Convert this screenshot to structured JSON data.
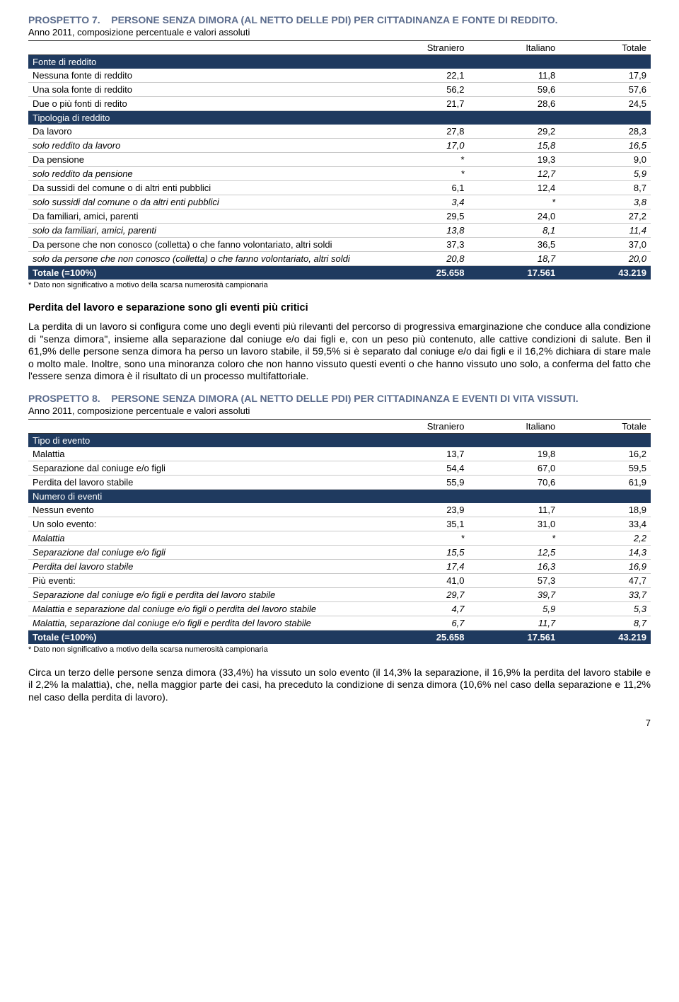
{
  "prospetto7": {
    "title_prefix": "PROSPETTO 7.",
    "title_text": "PERSONE SENZA DIMORA (AL NETTO DELLE PDI) PER CITTADINANZA E FONTE DI REDDITO.",
    "subtitle": "Anno 2011, composizione percentuale e valori assoluti",
    "columns": [
      "Straniero",
      "Italiano",
      "Totale"
    ],
    "sections": [
      {
        "header": "Fonte di reddito",
        "rows": [
          {
            "label": "Nessuna fonte di reddito",
            "vals": [
              "22,1",
              "11,8",
              "17,9"
            ]
          },
          {
            "label": "Una sola fonte di reddito",
            "vals": [
              "56,2",
              "59,6",
              "57,6"
            ]
          },
          {
            "label": "Due o più fonti di redito",
            "vals": [
              "21,7",
              "28,6",
              "24,5"
            ]
          }
        ]
      },
      {
        "header": "Tipologia di reddito",
        "rows": [
          {
            "label": "Da lavoro",
            "vals": [
              "27,8",
              "29,2",
              "28,3"
            ]
          },
          {
            "label": "solo reddito da lavoro",
            "vals": [
              "17,0",
              "15,8",
              "16,5"
            ],
            "italic": true
          },
          {
            "label": "Da pensione",
            "vals": [
              "*",
              "19,3",
              "9,0"
            ]
          },
          {
            "label": "solo reddito da pensione",
            "vals": [
              "*",
              "12,7",
              "5,9"
            ],
            "italic": true
          },
          {
            "label": "Da sussidi del comune o di altri enti pubblici",
            "vals": [
              "6,1",
              "12,4",
              "8,7"
            ]
          },
          {
            "label": "solo sussidi dal comune o da altri enti pubblici",
            "vals": [
              "3,4",
              "*",
              "3,8"
            ],
            "italic": true
          },
          {
            "label": "Da familiari, amici, parenti",
            "vals": [
              "29,5",
              "24,0",
              "27,2"
            ]
          },
          {
            "label": "solo da familiari, amici, parenti",
            "vals": [
              "13,8",
              "8,1",
              "11,4"
            ],
            "italic": true
          },
          {
            "label": "Da persone che non conosco (colletta) o che fanno volontariato, altri soldi",
            "vals": [
              "37,3",
              "36,5",
              "37,0"
            ]
          },
          {
            "label": "solo da persone che non conosco (colletta) o che fanno volontariato, altri soldi",
            "vals": [
              "20,8",
              "18,7",
              "20,0"
            ],
            "italic": true
          }
        ]
      }
    ],
    "total": {
      "label": "Totale (=100%)",
      "vals": [
        "25.658",
        "17.561",
        "43.219"
      ]
    },
    "footnote": "* Dato non significativo a motivo della scarsa numerosità campionaria"
  },
  "heading1": "Perdita del lavoro e separazione sono gli eventi più critici",
  "para1": "La perdita di un lavoro si configura come uno degli eventi più rilevanti del percorso di progressiva emarginazione che conduce alla condizione di \"senza dimora\", insieme alla separazione dal coniuge e/o dai figli e, con un peso più contenuto, alle cattive condizioni di salute. Ben il 61,9% delle persone senza dimora ha perso un lavoro stabile, il 59,5% si è separato dal coniuge e/o dai figli e il 16,2% dichiara di stare male o molto male. Inoltre, sono una minoranza coloro che non hanno vissuto questi eventi o che hanno vissuto uno solo, a conferma del fatto che l'essere senza dimora è il risultato di un processo multifattoriale.",
  "prospetto8": {
    "title_prefix": "PROSPETTO 8.",
    "title_text": "PERSONE SENZA DIMORA (AL NETTO DELLE PDI) PER CITTADINANZA E EVENTI DI VITA VISSUTI.",
    "subtitle": "Anno 2011, composizione percentuale e valori assoluti",
    "columns": [
      "Straniero",
      "Italiano",
      "Totale"
    ],
    "sections": [
      {
        "header": "Tipo di evento",
        "rows": [
          {
            "label": "Malattia",
            "vals": [
              "13,7",
              "19,8",
              "16,2"
            ]
          },
          {
            "label": "Separazione dal coniuge e/o figli",
            "vals": [
              "54,4",
              "67,0",
              "59,5"
            ]
          },
          {
            "label": "Perdita del lavoro stabile",
            "vals": [
              "55,9",
              "70,6",
              "61,9"
            ]
          }
        ]
      },
      {
        "header": "Numero di eventi",
        "rows": [
          {
            "label": "Nessun evento",
            "vals": [
              "23,9",
              "11,7",
              "18,9"
            ]
          },
          {
            "label": "Un solo evento:",
            "vals": [
              "35,1",
              "31,0",
              "33,4"
            ]
          },
          {
            "label": "Malattia",
            "vals": [
              "*",
              "*",
              "2,2"
            ],
            "italic": true
          },
          {
            "label": "Separazione dal coniuge e/o figli",
            "vals": [
              "15,5",
              "12,5",
              "14,3"
            ],
            "italic": true
          },
          {
            "label": "Perdita del lavoro stabile",
            "vals": [
              "17,4",
              "16,3",
              "16,9"
            ],
            "italic": true
          },
          {
            "label": "Più eventi:",
            "vals": [
              "41,0",
              "57,3",
              "47,7"
            ]
          },
          {
            "label": "Separazione dal coniuge e/o figli e perdita del lavoro stabile",
            "vals": [
              "29,7",
              "39,7",
              "33,7"
            ],
            "italic": true
          },
          {
            "label": "Malattia e separazione dal coniuge e/o figli o perdita del lavoro stabile",
            "vals": [
              "4,7",
              "5,9",
              "5,3"
            ],
            "italic": true
          },
          {
            "label": "Malattia, separazione dal coniuge e/o figli e perdita del lavoro stabile",
            "vals": [
              "6,7",
              "11,7",
              "8,7"
            ],
            "italic": true
          }
        ]
      }
    ],
    "total": {
      "label": "Totale (=100%)",
      "vals": [
        "25.658",
        "17.561",
        "43.219"
      ]
    },
    "footnote": "* Dato non significativo a motivo della scarsa numerosità campionaria"
  },
  "para2": "Circa un terzo delle persone senza dimora (33,4%) ha vissuto un solo evento (il 14,3% la separazione, il 16,9% la perdita del lavoro stabile e il 2,2% la malattia), che, nella maggior parte dei casi, ha preceduto la condizione di senza dimora (10,6% nel caso della separazione e 11,2% nel caso della perdita di lavoro).",
  "page_number": "7"
}
